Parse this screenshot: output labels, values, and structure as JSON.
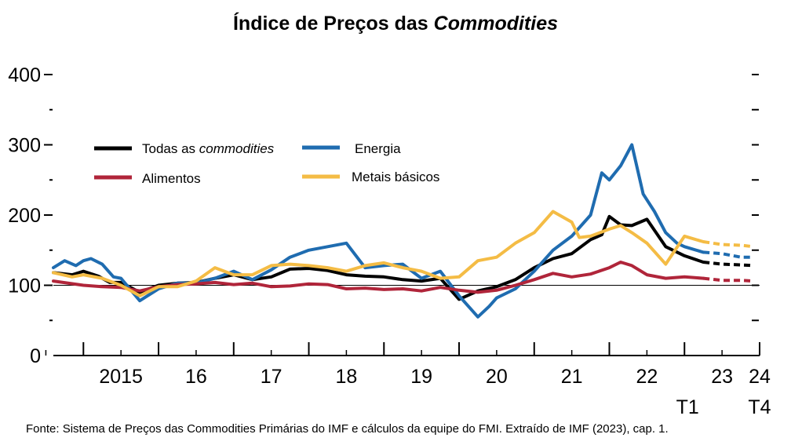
{
  "title": {
    "main": "Índice de Preços das ",
    "italic": "Commodities"
  },
  "source": "Fonte: Sistema de Preços das Commodities Primárias do IMF e cálculos da equipe do FMI. Extraído de IMF (2023), cap. 1.",
  "chart_data": {
    "type": "line",
    "title": "Índice de Preços das Commodities",
    "ylim": [
      0,
      400
    ],
    "yticks": [
      0,
      100,
      200,
      300,
      400
    ],
    "xlim": [
      2014.6,
      2024.0
    ],
    "year_ticks": [
      2015,
      2016,
      2017,
      2018,
      2019,
      2020,
      2021,
      2022,
      2023,
      2024
    ],
    "year_labels": [
      "2015",
      "16",
      "17",
      "18",
      "19",
      "20",
      "21",
      "22",
      "23",
      "24"
    ],
    "quarter_labels": [
      {
        "x": 2023.0,
        "text": "T1"
      },
      {
        "x": 2024.0,
        "text": "T4"
      }
    ],
    "reference_line": 100,
    "forecast_start": 2023.25,
    "grid": false,
    "legend": "top-left",
    "series": [
      {
        "name": "Todas as commodities",
        "color": "#000000",
        "x": [
          2014.6,
          2014.85,
          2015.0,
          2015.2,
          2015.35,
          2015.5,
          2015.75,
          2016.0,
          2016.25,
          2016.5,
          2016.75,
          2017.0,
          2017.25,
          2017.5,
          2017.75,
          2018.0,
          2018.25,
          2018.5,
          2018.75,
          2019.0,
          2019.25,
          2019.5,
          2019.75,
          2020.0,
          2020.25,
          2020.5,
          2020.75,
          2021.0,
          2021.25,
          2021.5,
          2021.75,
          2021.9,
          2022.0,
          2022.15,
          2022.3,
          2022.5,
          2022.75,
          2023.0,
          2023.25,
          2023.5,
          2023.75,
          2023.92
        ],
        "y": [
          118,
          115,
          120,
          113,
          104,
          104,
          90,
          100,
          103,
          104,
          110,
          115,
          108,
          112,
          123,
          124,
          121,
          115,
          113,
          112,
          108,
          106,
          110,
          80,
          92,
          98,
          108,
          125,
          138,
          145,
          165,
          172,
          198,
          186,
          185,
          194,
          155,
          142,
          133,
          130,
          129,
          128
        ]
      },
      {
        "name": "Energia",
        "color": "#1f6cb0",
        "x": [
          2014.6,
          2014.75,
          2014.9,
          2015.0,
          2015.1,
          2015.25,
          2015.4,
          2015.5,
          2015.75,
          2016.0,
          2016.25,
          2016.5,
          2016.75,
          2017.0,
          2017.25,
          2017.5,
          2017.75,
          2018.0,
          2018.25,
          2018.5,
          2018.75,
          2019.0,
          2019.25,
          2019.5,
          2019.75,
          2020.0,
          2020.25,
          2020.4,
          2020.5,
          2020.75,
          2021.0,
          2021.25,
          2021.5,
          2021.75,
          2021.9,
          2022.0,
          2022.15,
          2022.3,
          2022.45,
          2022.6,
          2022.75,
          2022.9,
          2023.0,
          2023.25,
          2023.5,
          2023.75,
          2023.92
        ],
        "y": [
          125,
          135,
          128,
          135,
          138,
          130,
          112,
          110,
          78,
          95,
          103,
          103,
          110,
          120,
          108,
          122,
          140,
          150,
          155,
          160,
          125,
          128,
          130,
          110,
          120,
          85,
          55,
          70,
          82,
          95,
          120,
          150,
          170,
          200,
          260,
          250,
          270,
          300,
          230,
          205,
          175,
          160,
          155,
          147,
          145,
          140,
          140
        ]
      },
      {
        "name": "Alimentos",
        "color": "#b0253a",
        "x": [
          2014.6,
          2015.0,
          2015.25,
          2015.5,
          2015.75,
          2016.0,
          2016.25,
          2016.5,
          2016.75,
          2017.0,
          2017.25,
          2017.5,
          2017.75,
          2018.0,
          2018.25,
          2018.5,
          2018.75,
          2019.0,
          2019.25,
          2019.5,
          2019.75,
          2020.0,
          2020.25,
          2020.5,
          2020.75,
          2021.0,
          2021.25,
          2021.5,
          2021.75,
          2022.0,
          2022.15,
          2022.3,
          2022.5,
          2022.75,
          2023.0,
          2023.25,
          2023.5,
          2023.75,
          2023.92
        ],
        "y": [
          106,
          100,
          98,
          97,
          92,
          98,
          101,
          102,
          104,
          101,
          103,
          98,
          99,
          102,
          101,
          95,
          96,
          94,
          95,
          92,
          97,
          93,
          90,
          93,
          100,
          108,
          117,
          112,
          116,
          125,
          133,
          128,
          115,
          110,
          112,
          110,
          107,
          107,
          106
        ]
      },
      {
        "name": "Metais básicos",
        "color": "#f4bc45",
        "x": [
          2014.6,
          2014.85,
          2015.0,
          2015.25,
          2015.5,
          2015.75,
          2016.0,
          2016.25,
          2016.5,
          2016.75,
          2017.0,
          2017.25,
          2017.5,
          2017.75,
          2018.0,
          2018.25,
          2018.5,
          2018.75,
          2019.0,
          2019.25,
          2019.5,
          2019.75,
          2020.0,
          2020.25,
          2020.5,
          2020.75,
          2021.0,
          2021.25,
          2021.5,
          2021.6,
          2021.75,
          2022.0,
          2022.15,
          2022.3,
          2022.5,
          2022.75,
          2023.0,
          2023.25,
          2023.5,
          2023.75,
          2023.92
        ],
        "y": [
          118,
          112,
          115,
          110,
          100,
          85,
          98,
          98,
          106,
          125,
          115,
          115,
          128,
          130,
          128,
          125,
          120,
          128,
          132,
          125,
          120,
          110,
          112,
          135,
          140,
          160,
          175,
          205,
          190,
          168,
          170,
          180,
          185,
          175,
          160,
          130,
          170,
          162,
          158,
          157,
          155
        ]
      }
    ]
  },
  "legend": [
    {
      "label": "Todas as ",
      "italic": "commodities",
      "color": "#000000"
    },
    {
      "label": "Energia",
      "italic": "",
      "color": "#1f6cb0"
    },
    {
      "label": "Alimentos",
      "italic": "",
      "color": "#b0253a"
    },
    {
      "label": "Metais básicos",
      "italic": "",
      "color": "#f4bc45"
    }
  ]
}
